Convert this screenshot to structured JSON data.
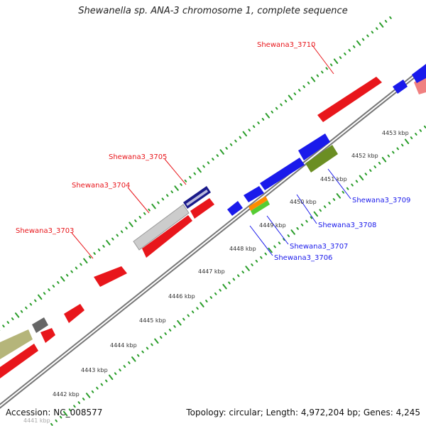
{
  "title": "Shewanella sp. ANA-3 chromosome 1, complete sequence",
  "footer": {
    "accession": "Accession: NC_008577",
    "summary": "Topology: circular; Length: 4,972,204 bp; Genes: 4,245"
  },
  "scale_labels": [
    "4441 kbp",
    "4442 kbp",
    "4443 kbp",
    "4444 kbp",
    "4445 kbp",
    "4446 kbp",
    "4447 kbp",
    "4448 kbp",
    "4449 kbp",
    "4450 kbp",
    "4451 kbp",
    "4452 kbp",
    "4453 kbp"
  ],
  "genes_top": [
    {
      "label": "Shewana3_3710",
      "color": "#e8161b"
    },
    {
      "label": "Shewana3_3705",
      "color": "#e8161b"
    },
    {
      "label": "Shewana3_3704",
      "color": "#e8161b"
    },
    {
      "label": "Shewana3_3703",
      "color": "#e8161b"
    }
  ],
  "genes_bottom": [
    {
      "label": "Shewana3_3709",
      "color": "#1a1aeb"
    },
    {
      "label": "Shewana3_3708",
      "color": "#1a1aeb"
    },
    {
      "label": "Shewana3_3707",
      "color": "#1a1aeb"
    },
    {
      "label": "Shewana3_3706",
      "color": "#1a1aeb"
    }
  ],
  "colors": {
    "forward": "#ff0000",
    "reverse": "#0000ff",
    "backbone": "#888888",
    "ticks": "#2a9d2a",
    "olive": "#6b8e23",
    "khaki": "#b5b57a",
    "light_gray": "#cccccc",
    "dark_gray": "#666666",
    "orange": "#ff8c00",
    "light_green": "#55cc33",
    "navy": "#1a1a8a",
    "pink": "#f08080"
  }
}
